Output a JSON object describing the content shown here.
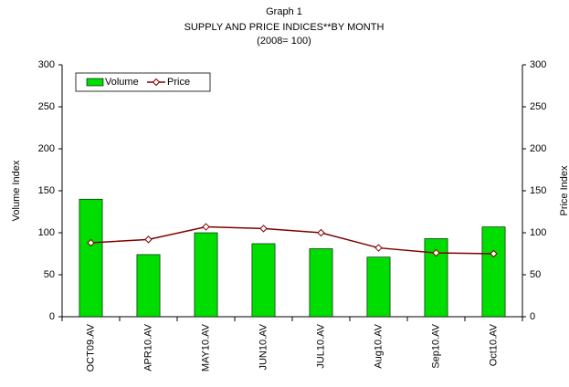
{
  "chart_data": {
    "type": "bar",
    "title": "Graph 1",
    "subtitle": "SUPPLY AND PRICE INDICES**BY MONTH",
    "note": "(2008= 100)",
    "ylabel": "Volume Index",
    "y2label": "Price Index",
    "categories": [
      "OCT09.AV",
      "APR10.AV",
      "MAY10.AV",
      "JUN10.AV",
      "JUL10.AV",
      "Aug10.AV",
      "Sep10.AV",
      "Oct10.AV"
    ],
    "series": [
      {
        "name": "Volume",
        "type": "bar",
        "color": "#00dd00",
        "values": [
          140,
          74,
          100,
          87,
          81,
          71,
          93,
          107
        ]
      },
      {
        "name": "Price",
        "type": "line",
        "axis": "y2",
        "color": "#800000",
        "values": [
          88,
          92,
          107,
          105,
          100,
          82,
          76,
          75
        ]
      }
    ],
    "ylim": [
      0,
      300
    ],
    "yticks": [
      0,
      50,
      100,
      150,
      200,
      250,
      300
    ],
    "y2lim": [
      0,
      300
    ],
    "y2ticks": [
      0,
      50,
      100,
      150,
      200,
      250,
      300
    ],
    "legend": "top-left"
  }
}
